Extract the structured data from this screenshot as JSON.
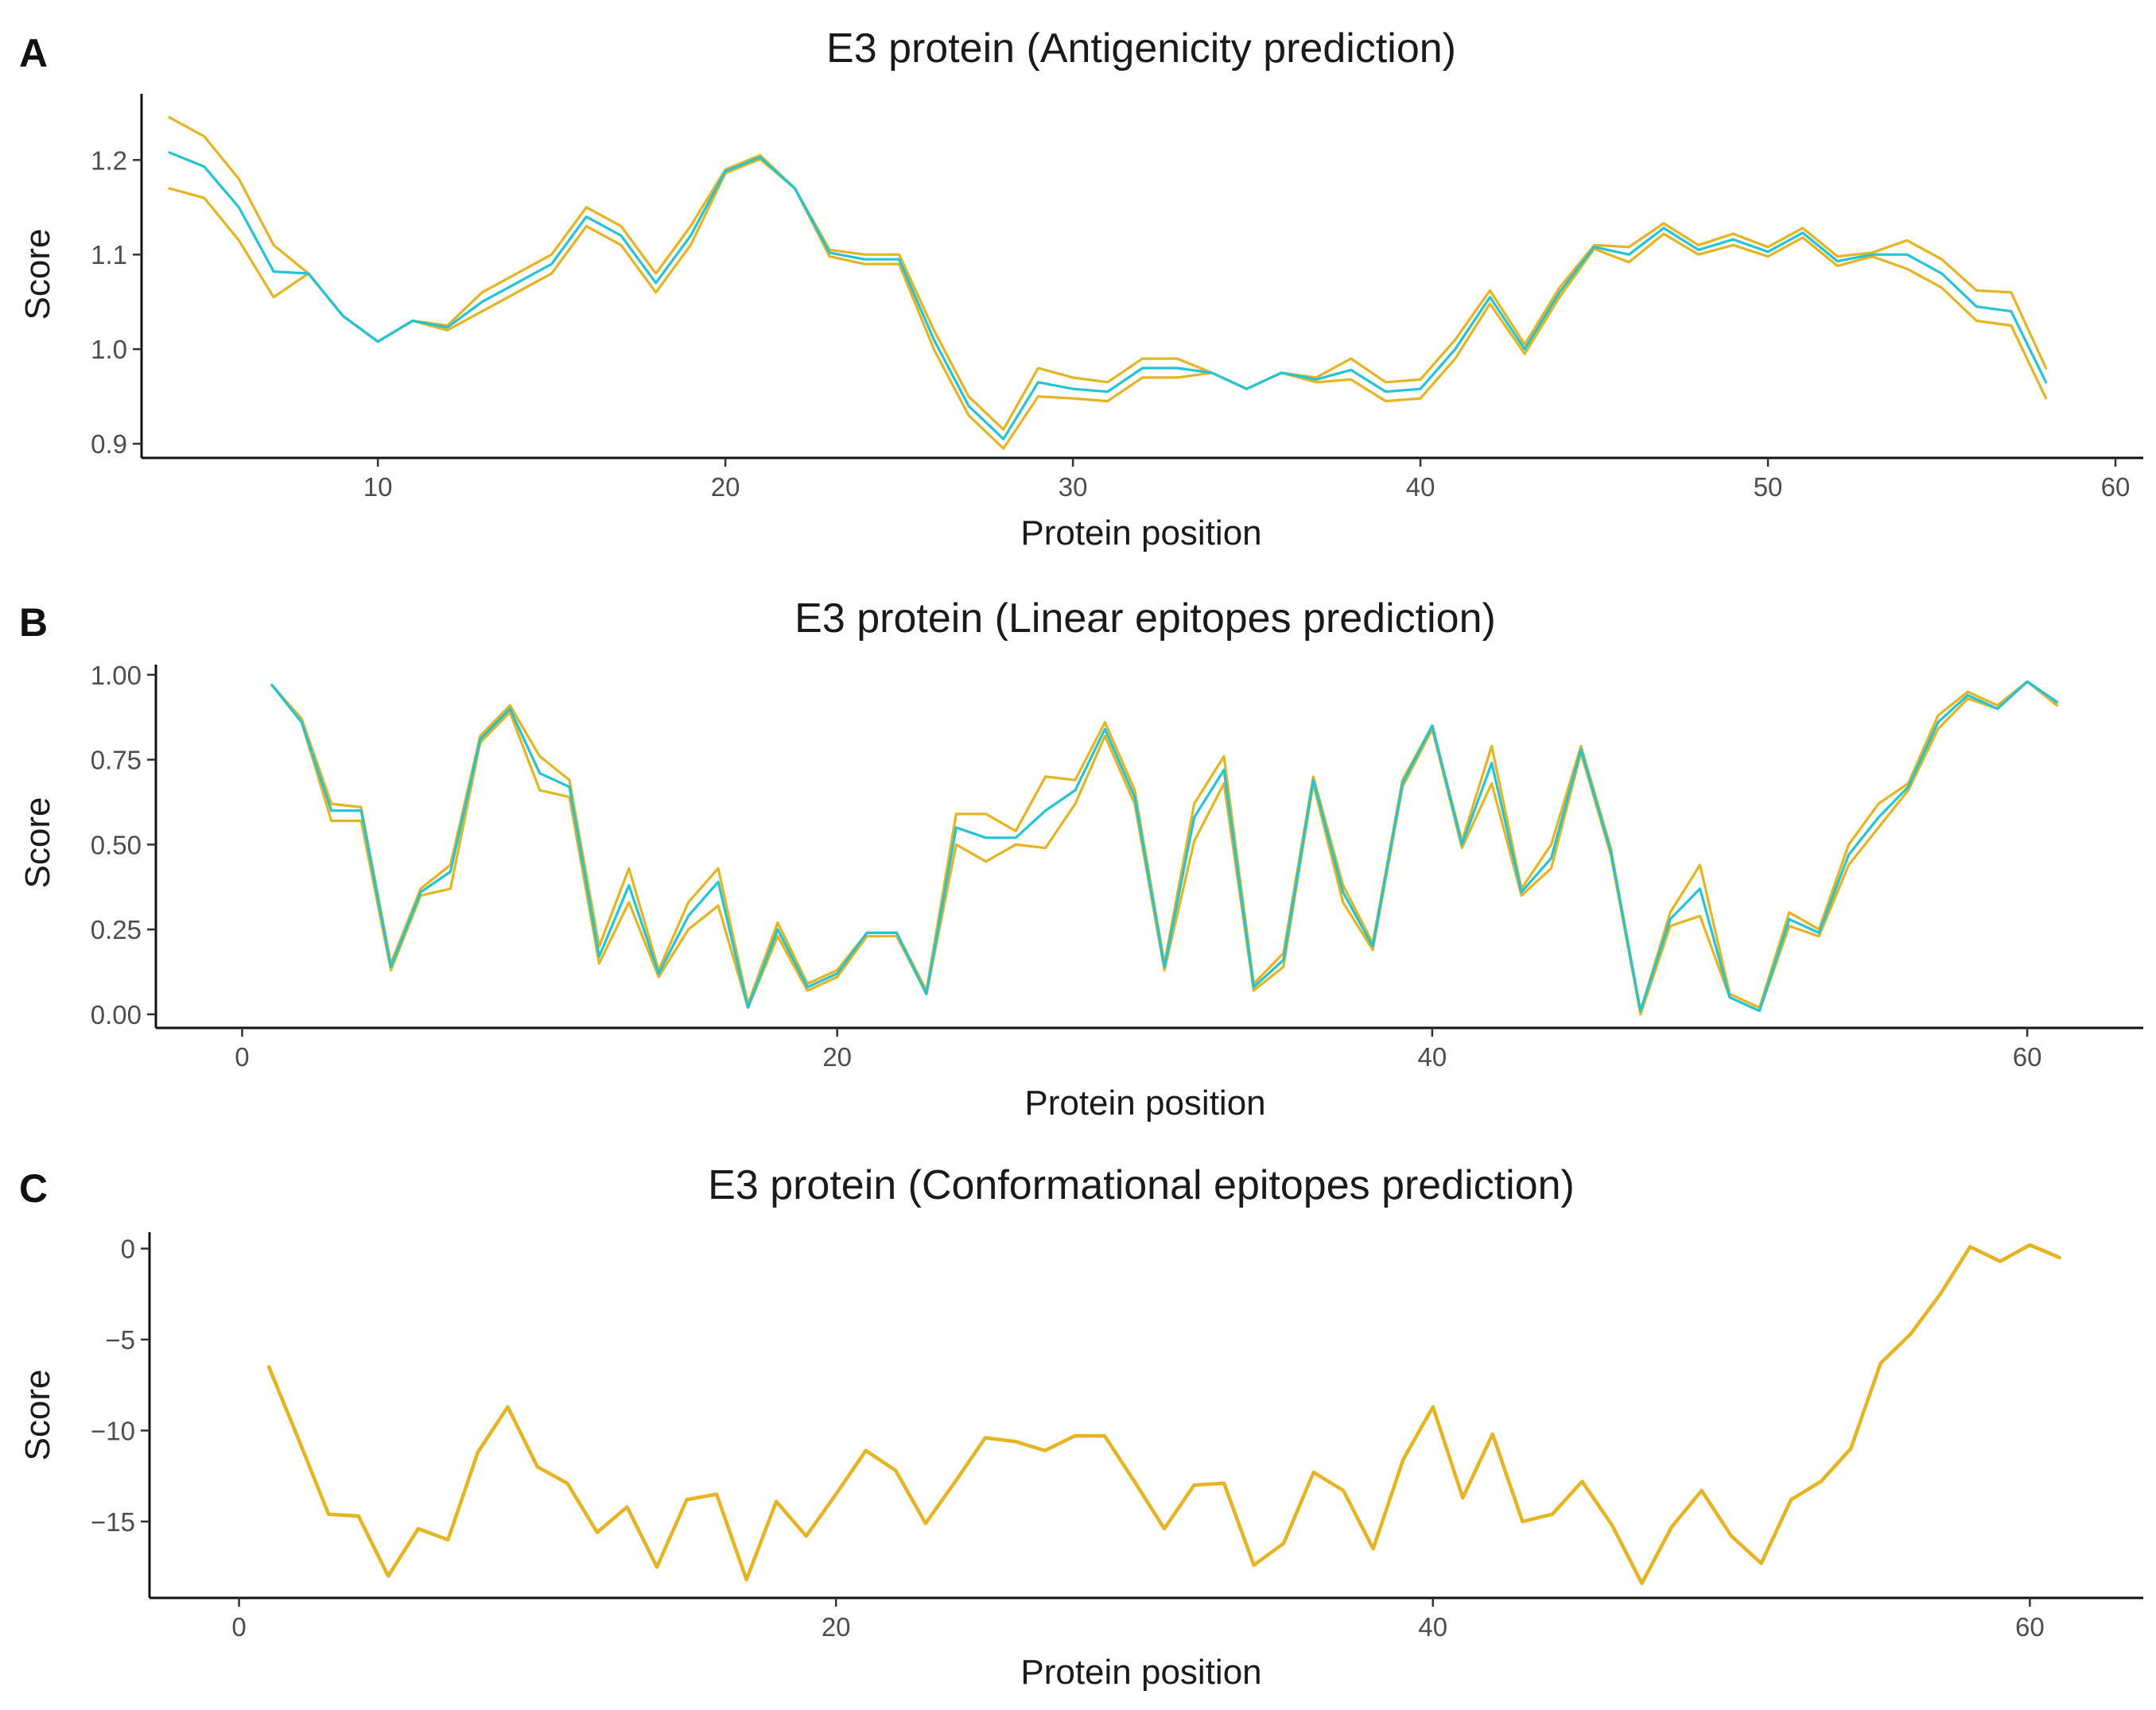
{
  "colors": {
    "mean_line": "#22C4D6",
    "bound_line": "#E5B420"
  },
  "chart_data": [
    {
      "type": "line",
      "panel": "A",
      "title": "E3 protein (Antigenicity prediction)",
      "xlabel": "Protein position",
      "ylabel": "Score",
      "xlim": [
        3.2,
        60.8
      ],
      "ylim": [
        0.885,
        1.27
      ],
      "xticks": [
        10,
        20,
        30,
        40,
        50,
        60
      ],
      "yticks": [
        0.9,
        1.0,
        1.1,
        1.2
      ],
      "ytick_labels": [
        "0.9",
        "1.0",
        "1.1",
        "1.2"
      ],
      "x": [
        4,
        5,
        6,
        7,
        8,
        9,
        10,
        11,
        12,
        13,
        14,
        15,
        16,
        17,
        18,
        19,
        20,
        21,
        22,
        23,
        24,
        25,
        26,
        27,
        28,
        29,
        30,
        31,
        32,
        33,
        34,
        35,
        36,
        37,
        38,
        39,
        40,
        41,
        42,
        43,
        44,
        45,
        46,
        47,
        48,
        49,
        50,
        51,
        52,
        53,
        54,
        55,
        56,
        57,
        58
      ],
      "series": [
        {
          "name": "upper",
          "values": [
            1.245,
            1.225,
            1.18,
            1.11,
            1.08,
            1.035,
            1.008,
            1.03,
            1.025,
            1.06,
            1.08,
            1.1,
            1.15,
            1.13,
            1.08,
            1.13,
            1.19,
            1.205,
            1.17,
            1.105,
            1.1,
            1.1,
            1.02,
            0.95,
            0.915,
            0.98,
            0.97,
            0.965,
            0.99,
            0.99,
            0.975,
            0.958,
            0.975,
            0.97,
            0.99,
            0.965,
            0.968,
            1.01,
            1.062,
            1.005,
            1.065,
            1.11,
            1.108,
            1.133,
            1.11,
            1.122,
            1.108,
            1.128,
            1.098,
            1.102,
            1.115,
            1.095,
            1.062,
            1.06,
            0.98
          ]
        },
        {
          "name": "mean",
          "values": [
            1.208,
            1.193,
            1.15,
            1.082,
            1.08,
            1.035,
            1.008,
            1.03,
            1.023,
            1.05,
            1.07,
            1.09,
            1.14,
            1.12,
            1.07,
            1.12,
            1.188,
            1.203,
            1.17,
            1.102,
            1.095,
            1.095,
            1.01,
            0.94,
            0.905,
            0.965,
            0.958,
            0.955,
            0.98,
            0.98,
            0.975,
            0.958,
            0.975,
            0.968,
            0.978,
            0.955,
            0.958,
            1.0,
            1.055,
            1.0,
            1.06,
            1.108,
            1.1,
            1.128,
            1.105,
            1.116,
            1.103,
            1.123,
            1.093,
            1.1,
            1.1,
            1.08,
            1.045,
            1.04,
            0.965
          ]
        },
        {
          "name": "lower",
          "values": [
            1.17,
            1.16,
            1.115,
            1.055,
            1.08,
            1.035,
            1.008,
            1.03,
            1.02,
            1.04,
            1.06,
            1.08,
            1.13,
            1.11,
            1.06,
            1.11,
            1.186,
            1.201,
            1.17,
            1.098,
            1.09,
            1.09,
            1.0,
            0.93,
            0.895,
            0.95,
            0.948,
            0.945,
            0.97,
            0.97,
            0.975,
            0.958,
            0.975,
            0.965,
            0.968,
            0.945,
            0.948,
            0.99,
            1.048,
            0.995,
            1.055,
            1.106,
            1.092,
            1.122,
            1.1,
            1.11,
            1.098,
            1.118,
            1.088,
            1.098,
            1.085,
            1.065,
            1.03,
            1.025,
            0.948
          ]
        }
      ]
    },
    {
      "type": "line",
      "panel": "B",
      "title": "E3 protein (Linear epitopes prediction)",
      "xlabel": "Protein position",
      "ylabel": "Score",
      "xlim": [
        -2.9,
        63.9
      ],
      "ylim": [
        -0.04,
        1.03
      ],
      "xticks": [
        0,
        20,
        40,
        60
      ],
      "yticks": [
        0.0,
        0.25,
        0.5,
        0.75,
        1.0
      ],
      "ytick_labels": [
        "0.00",
        "0.25",
        "0.50",
        "0.75",
        "1.00"
      ],
      "x": [
        1,
        2,
        3,
        4,
        5,
        6,
        7,
        8,
        9,
        10,
        11,
        12,
        13,
        14,
        15,
        16,
        17,
        18,
        19,
        20,
        21,
        22,
        23,
        24,
        25,
        26,
        27,
        28,
        29,
        30,
        31,
        32,
        33,
        34,
        35,
        36,
        37,
        38,
        39,
        40,
        41,
        42,
        43,
        44,
        45,
        46,
        47,
        48,
        49,
        50,
        51,
        52,
        53,
        54,
        55,
        56,
        57,
        58,
        59,
        60,
        61
      ],
      "series": [
        {
          "name": "upper",
          "values": [
            0.97,
            0.87,
            0.62,
            0.61,
            0.15,
            0.37,
            0.44,
            0.82,
            0.91,
            0.76,
            0.69,
            0.2,
            0.43,
            0.13,
            0.33,
            0.43,
            0.03,
            0.27,
            0.09,
            0.13,
            0.24,
            0.24,
            0.07,
            0.59,
            0.59,
            0.54,
            0.7,
            0.69,
            0.86,
            0.66,
            0.15,
            0.62,
            0.76,
            0.09,
            0.18,
            0.7,
            0.38,
            0.21,
            0.69,
            0.85,
            0.51,
            0.79,
            0.37,
            0.5,
            0.79,
            0.49,
            0.01,
            0.3,
            0.44,
            0.06,
            0.02,
            0.3,
            0.25,
            0.5,
            0.62,
            0.68,
            0.88,
            0.95,
            0.91,
            0.98,
            0.92
          ]
        },
        {
          "name": "mean",
          "values": [
            0.97,
            0.86,
            0.6,
            0.6,
            0.14,
            0.36,
            0.42,
            0.81,
            0.9,
            0.71,
            0.67,
            0.17,
            0.38,
            0.12,
            0.29,
            0.39,
            0.02,
            0.25,
            0.08,
            0.12,
            0.24,
            0.24,
            0.06,
            0.55,
            0.52,
            0.52,
            0.6,
            0.66,
            0.84,
            0.64,
            0.14,
            0.58,
            0.72,
            0.08,
            0.16,
            0.69,
            0.36,
            0.2,
            0.68,
            0.85,
            0.5,
            0.74,
            0.36,
            0.46,
            0.78,
            0.48,
            0.01,
            0.28,
            0.37,
            0.05,
            0.01,
            0.28,
            0.24,
            0.47,
            0.58,
            0.67,
            0.86,
            0.94,
            0.9,
            0.98,
            0.92
          ]
        },
        {
          "name": "lower",
          "values": [
            0.97,
            0.86,
            0.57,
            0.57,
            0.13,
            0.35,
            0.37,
            0.8,
            0.89,
            0.66,
            0.64,
            0.15,
            0.33,
            0.11,
            0.25,
            0.32,
            0.02,
            0.23,
            0.07,
            0.11,
            0.23,
            0.23,
            0.06,
            0.5,
            0.45,
            0.5,
            0.49,
            0.62,
            0.82,
            0.62,
            0.13,
            0.51,
            0.68,
            0.07,
            0.14,
            0.68,
            0.33,
            0.19,
            0.67,
            0.84,
            0.49,
            0.68,
            0.35,
            0.43,
            0.77,
            0.47,
            0.0,
            0.26,
            0.29,
            0.05,
            0.01,
            0.26,
            0.23,
            0.44,
            0.55,
            0.66,
            0.84,
            0.93,
            0.9,
            0.98,
            0.91
          ]
        }
      ]
    },
    {
      "type": "line",
      "panel": "C",
      "title": "E3 protein (Conformational epitopes prediction)",
      "xlabel": "Protein position",
      "ylabel": "Score",
      "xlim": [
        -3.0,
        63.8
      ],
      "ylim": [
        -19.2,
        0.9
      ],
      "xticks": [
        0,
        20,
        40,
        60
      ],
      "yticks": [
        0,
        -5,
        -10,
        -15
      ],
      "ytick_labels": [
        "0",
        "−5",
        "−10",
        "−15"
      ],
      "x": [
        1,
        2,
        3,
        4,
        5,
        6,
        7,
        8,
        9,
        10,
        11,
        12,
        13,
        14,
        15,
        16,
        17,
        18,
        19,
        20,
        21,
        22,
        23,
        24,
        25,
        26,
        27,
        28,
        29,
        30,
        31,
        32,
        33,
        34,
        35,
        36,
        37,
        38,
        39,
        40,
        41,
        42,
        43,
        44,
        45,
        46,
        47,
        48,
        49,
        50,
        51,
        52,
        53,
        54,
        55,
        56,
        57,
        58,
        59,
        60,
        61
      ],
      "series": [
        {
          "name": "score",
          "values": [
            -6.5,
            -10.5,
            -14.6,
            -14.7,
            -18.0,
            -15.4,
            -16.0,
            -11.2,
            -8.7,
            -12.0,
            -12.9,
            -15.6,
            -14.2,
            -17.5,
            -13.8,
            -13.5,
            -18.2,
            -13.9,
            -15.8,
            -13.5,
            -11.1,
            -12.2,
            -15.1,
            -12.8,
            -10.4,
            -10.6,
            -11.1,
            -10.3,
            -10.3,
            -12.8,
            -15.4,
            -13.0,
            -12.9,
            -17.4,
            -16.2,
            -12.3,
            -13.3,
            -16.5,
            -11.6,
            -8.7,
            -13.7,
            -10.2,
            -15.0,
            -14.6,
            -12.8,
            -15.2,
            -18.4,
            -15.3,
            -13.3,
            -15.8,
            -17.3,
            -13.8,
            -12.8,
            -11.0,
            -6.3,
            -4.7,
            -2.5,
            0.1,
            -0.7,
            0.2,
            -0.5
          ]
        }
      ]
    }
  ]
}
